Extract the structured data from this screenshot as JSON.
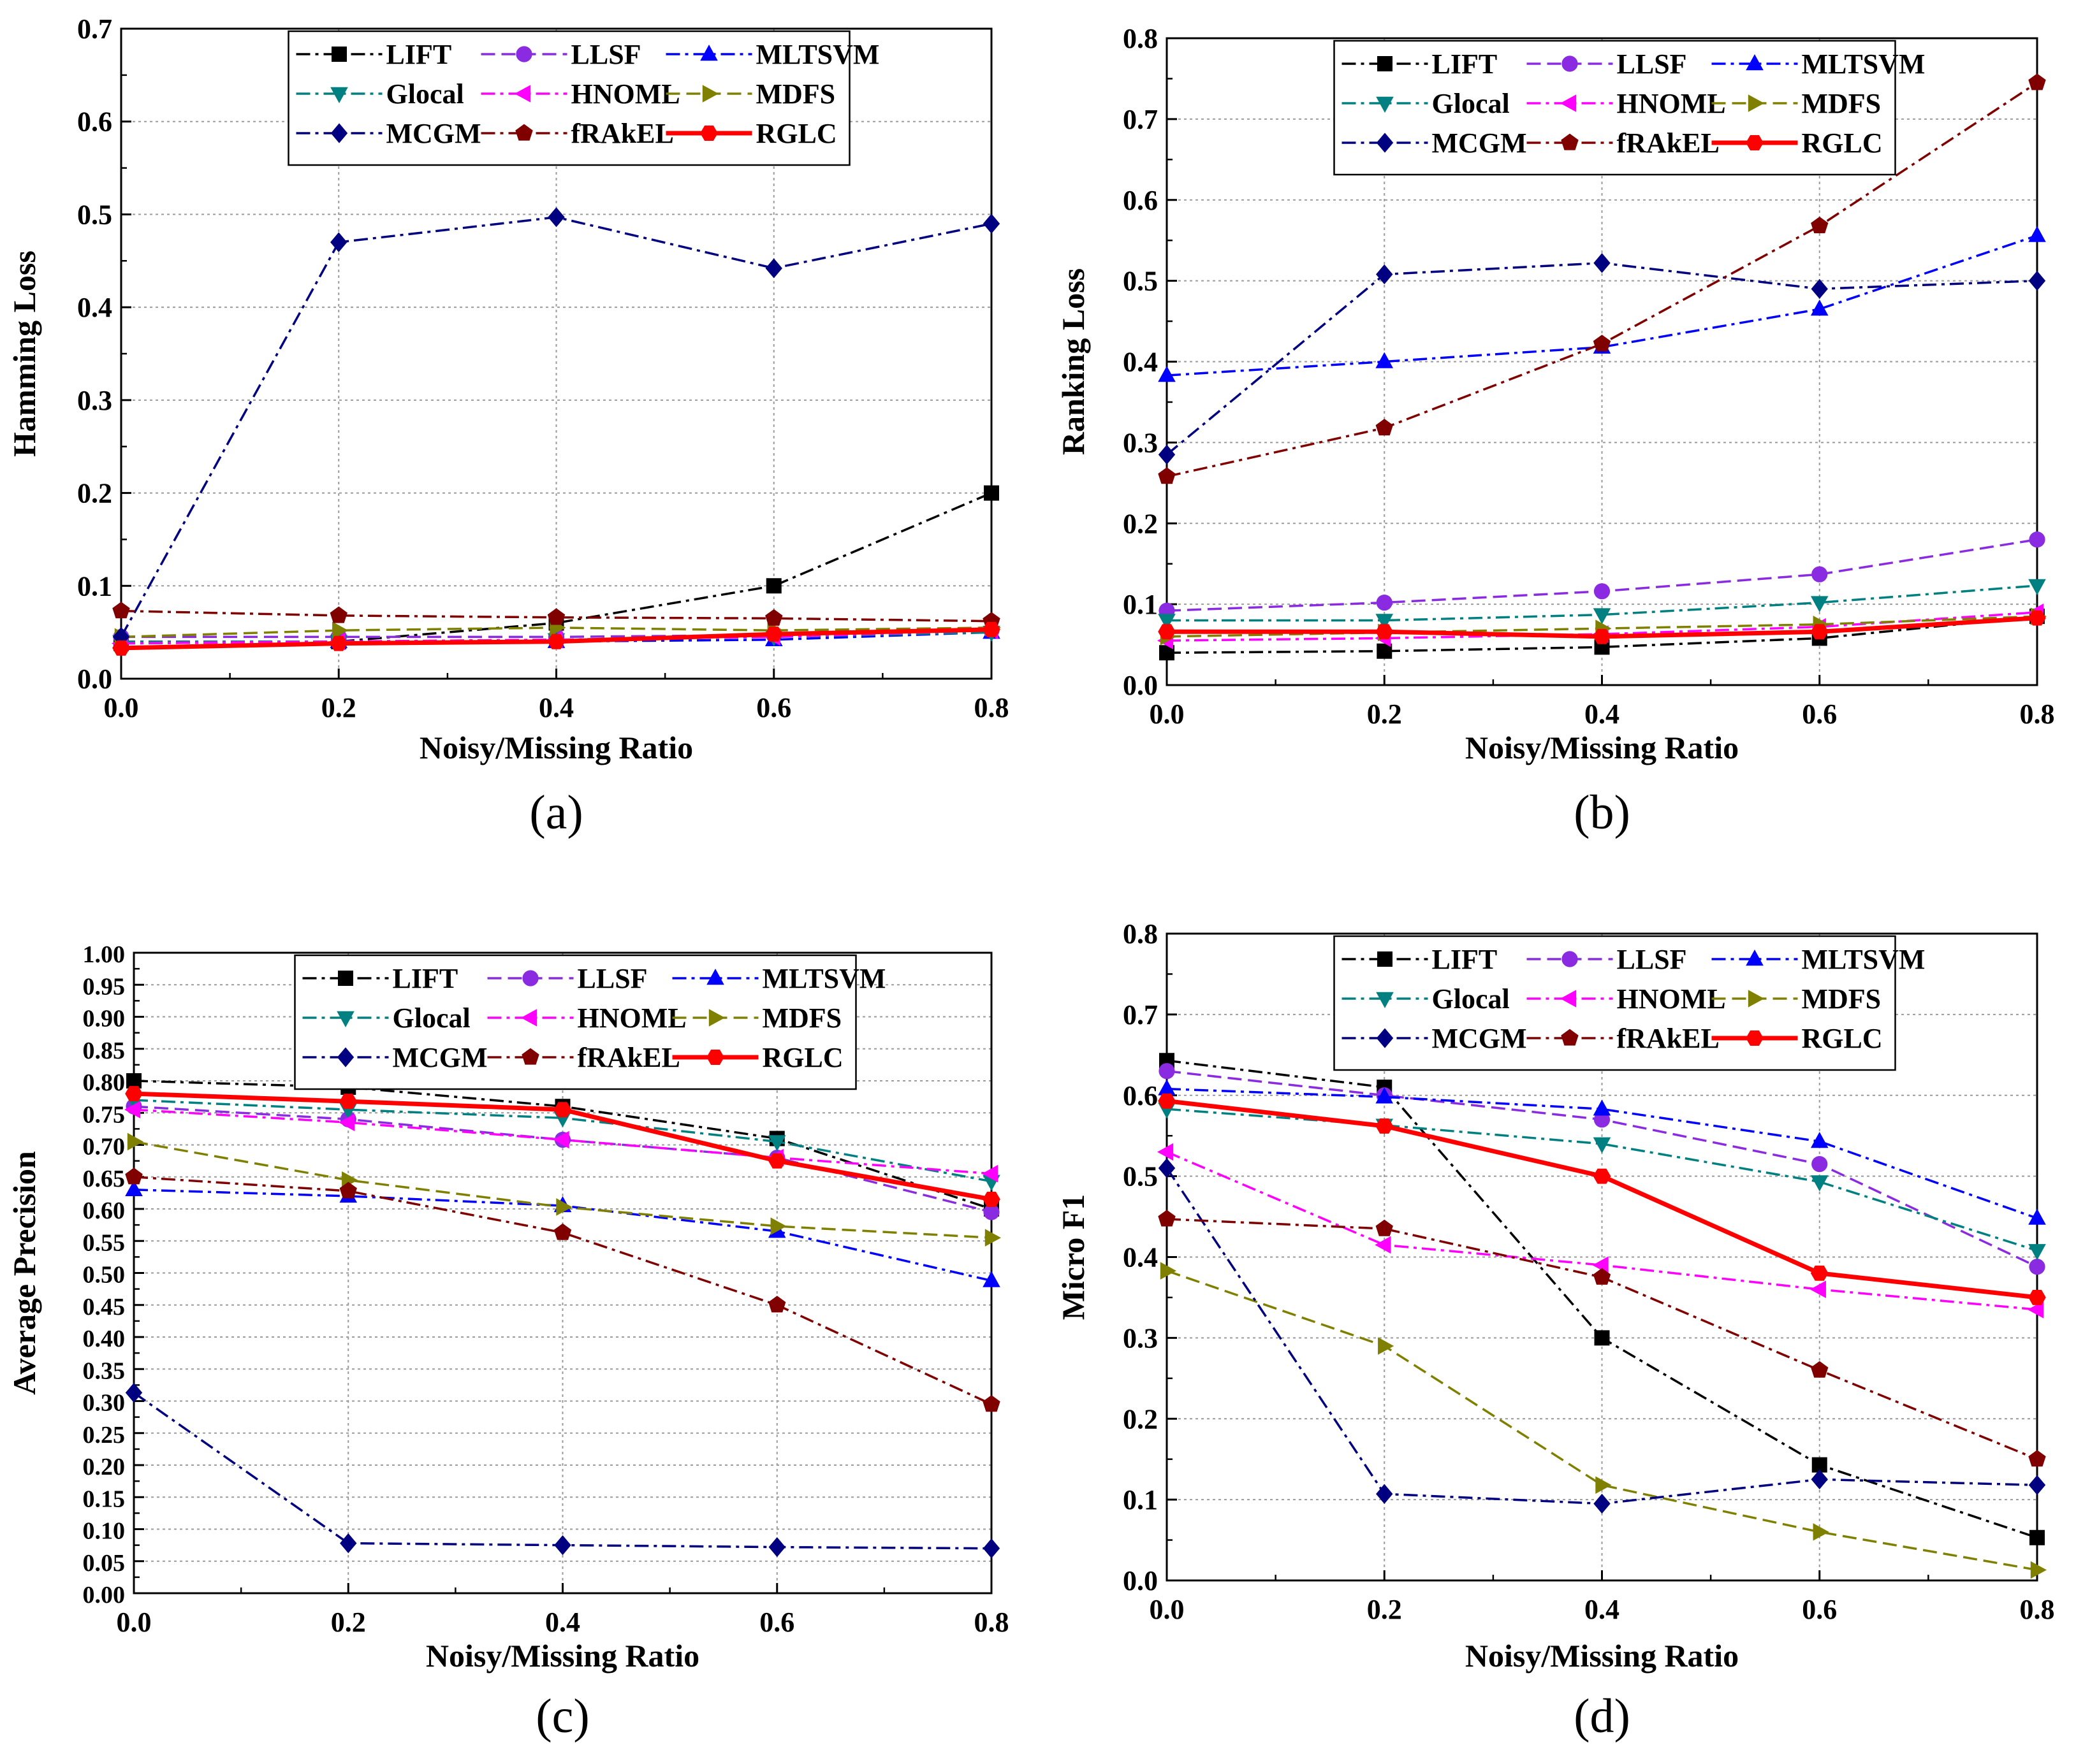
{
  "figure": {
    "series_styles": [
      {
        "name": "LIFT",
        "color": "#000000",
        "marker": "square",
        "dash": "dashdot"
      },
      {
        "name": "LLSF",
        "color": "#8a2be2",
        "marker": "circle",
        "dash": "dash"
      },
      {
        "name": "MLTSVM",
        "color": "#0000ff",
        "marker": "triangle-up",
        "dash": "dashdot"
      },
      {
        "name": "Glocal",
        "color": "#008080",
        "marker": "triangle-down",
        "dash": "dashdot"
      },
      {
        "name": "HNOML",
        "color": "#ff00ff",
        "marker": "triangle-left",
        "dash": "dashdot"
      },
      {
        "name": "MDFS",
        "color": "#808000",
        "marker": "triangle-right",
        "dash": "dash"
      },
      {
        "name": "MCGM",
        "color": "#000080",
        "marker": "diamond",
        "dash": "dashdot"
      },
      {
        "name": "fRAkEL",
        "color": "#800000",
        "marker": "pentagon",
        "dash": "dashdot"
      },
      {
        "name": "RGLC",
        "color": "#ff0000",
        "marker": "hexagon",
        "dash": "solid"
      }
    ]
  },
  "chart_data": [
    {
      "panel": "(a)",
      "type": "line",
      "xlabel": "Noisy/Missing Ratio",
      "ylabel": "Hamming Loss",
      "x": [
        0.0,
        0.2,
        0.4,
        0.6,
        0.8
      ],
      "xticks": [
        "0.0",
        "0.2",
        "0.4",
        "0.6",
        "0.8"
      ],
      "xlim": [
        0,
        0.8
      ],
      "ylim": [
        0,
        0.7
      ],
      "yticks": [
        "0.0",
        "0.1",
        "0.2",
        "0.3",
        "0.4",
        "0.5",
        "0.6",
        "0.7"
      ],
      "grid": true,
      "legend": "top",
      "series": [
        {
          "name": "LIFT",
          "values": [
            0.038,
            0.04,
            0.06,
            0.1,
            0.2
          ]
        },
        {
          "name": "LLSF",
          "values": [
            0.045,
            0.045,
            0.045,
            0.047,
            0.052
          ]
        },
        {
          "name": "MLTSVM",
          "values": [
            0.04,
            0.04,
            0.04,
            0.042,
            0.05
          ]
        },
        {
          "name": "Glocal",
          "values": [
            0.04,
            0.04,
            0.042,
            0.045,
            0.05
          ]
        },
        {
          "name": "HNOML",
          "values": [
            0.038,
            0.04,
            0.042,
            0.045,
            0.052
          ]
        },
        {
          "name": "MDFS",
          "values": [
            0.045,
            0.052,
            0.055,
            0.052,
            0.055
          ]
        },
        {
          "name": "MCGM",
          "values": [
            0.045,
            0.47,
            0.497,
            0.442,
            0.49
          ]
        },
        {
          "name": "fRAkEL",
          "values": [
            0.073,
            0.068,
            0.066,
            0.065,
            0.062
          ]
        },
        {
          "name": "RGLC",
          "values": [
            0.033,
            0.038,
            0.04,
            0.048,
            0.053
          ]
        }
      ]
    },
    {
      "panel": "(b)",
      "type": "line",
      "xlabel": "Noisy/Missing Ratio",
      "ylabel": "Ranking Loss",
      "x": [
        0.0,
        0.2,
        0.4,
        0.6,
        0.8
      ],
      "xticks": [
        "0.0",
        "0.2",
        "0.4",
        "0.6",
        "0.8"
      ],
      "xlim": [
        0,
        0.8
      ],
      "ylim": [
        0,
        0.8
      ],
      "yticks": [
        "0.0",
        "0.1",
        "0.2",
        "0.3",
        "0.4",
        "0.5",
        "0.6",
        "0.7",
        "0.8"
      ],
      "grid": true,
      "legend": "top",
      "series": [
        {
          "name": "LIFT",
          "values": [
            0.04,
            0.042,
            0.047,
            0.058,
            0.085
          ]
        },
        {
          "name": "LLSF",
          "values": [
            0.092,
            0.102,
            0.116,
            0.137,
            0.18
          ]
        },
        {
          "name": "MLTSVM",
          "values": [
            0.383,
            0.4,
            0.418,
            0.465,
            0.556
          ]
        },
        {
          "name": "Glocal",
          "values": [
            0.08,
            0.08,
            0.087,
            0.102,
            0.123
          ]
        },
        {
          "name": "HNOML",
          "values": [
            0.055,
            0.058,
            0.063,
            0.072,
            0.09
          ]
        },
        {
          "name": "MDFS",
          "values": [
            0.06,
            0.065,
            0.07,
            0.075,
            0.085
          ]
        },
        {
          "name": "MCGM",
          "values": [
            0.285,
            0.508,
            0.522,
            0.49,
            0.5
          ]
        },
        {
          "name": "fRAkEL",
          "values": [
            0.258,
            0.318,
            0.422,
            0.568,
            0.745
          ]
        },
        {
          "name": "RGLC",
          "values": [
            0.066,
            0.066,
            0.06,
            0.066,
            0.083
          ]
        }
      ]
    },
    {
      "panel": "(c)",
      "type": "line",
      "xlabel": "Noisy/Missing Ratio",
      "ylabel": "Average Precision",
      "x": [
        0.0,
        0.2,
        0.4,
        0.6,
        0.8
      ],
      "xticks": [
        "0.0",
        "0.2",
        "0.4",
        "0.6",
        "0.8"
      ],
      "xlim": [
        0,
        0.8
      ],
      "ylim": [
        0,
        1.0
      ],
      "yticks": [
        "0.00",
        "0.05",
        "0.10",
        "0.15",
        "0.20",
        "0.25",
        "0.30",
        "0.35",
        "0.40",
        "0.45",
        "0.50",
        "0.55",
        "0.60",
        "0.65",
        "0.70",
        "0.75",
        "0.80",
        "0.85",
        "0.90",
        "0.95",
        "1.00"
      ],
      "grid": true,
      "legend": "top",
      "series": [
        {
          "name": "LIFT",
          "values": [
            0.8,
            0.79,
            0.76,
            0.71,
            0.6
          ]
        },
        {
          "name": "LLSF",
          "values": [
            0.76,
            0.74,
            0.708,
            0.68,
            0.595
          ]
        },
        {
          "name": "MLTSVM",
          "values": [
            0.63,
            0.62,
            0.605,
            0.565,
            0.488
          ]
        },
        {
          "name": "Glocal",
          "values": [
            0.77,
            0.755,
            0.742,
            0.705,
            0.643
          ]
        },
        {
          "name": "HNOML",
          "values": [
            0.755,
            0.735,
            0.708,
            0.68,
            0.655
          ]
        },
        {
          "name": "MDFS",
          "values": [
            0.705,
            0.645,
            0.603,
            0.573,
            0.555
          ]
        },
        {
          "name": "MCGM",
          "values": [
            0.313,
            0.078,
            0.075,
            0.072,
            0.07
          ]
        },
        {
          "name": "fRAkEL",
          "values": [
            0.65,
            0.628,
            0.563,
            0.45,
            0.295
          ]
        },
        {
          "name": "RGLC",
          "values": [
            0.78,
            0.768,
            0.755,
            0.675,
            0.615
          ]
        }
      ]
    },
    {
      "panel": "(d)",
      "type": "line",
      "xlabel": "Noisy/Missing Ratio",
      "ylabel": "Micro F1",
      "x": [
        0.0,
        0.2,
        0.4,
        0.6,
        0.8
      ],
      "xticks": [
        "0.0",
        "0.2",
        "0.4",
        "0.6",
        "0.8"
      ],
      "xlim": [
        0,
        0.8
      ],
      "ylim": [
        0,
        0.8
      ],
      "yticks": [
        "0.0",
        "0.1",
        "0.2",
        "0.3",
        "0.4",
        "0.5",
        "0.6",
        "0.7",
        "0.8"
      ],
      "grid": true,
      "legend": "top",
      "series": [
        {
          "name": "LIFT",
          "values": [
            0.643,
            0.61,
            0.3,
            0.143,
            0.053
          ]
        },
        {
          "name": "LLSF",
          "values": [
            0.63,
            0.6,
            0.57,
            0.515,
            0.388
          ]
        },
        {
          "name": "MLTSVM",
          "values": [
            0.608,
            0.598,
            0.583,
            0.543,
            0.448
          ]
        },
        {
          "name": "Glocal",
          "values": [
            0.583,
            0.563,
            0.54,
            0.493,
            0.408
          ]
        },
        {
          "name": "HNOML",
          "values": [
            0.53,
            0.415,
            0.39,
            0.36,
            0.335
          ]
        },
        {
          "name": "MDFS",
          "values": [
            0.383,
            0.29,
            0.118,
            0.06,
            0.013
          ]
        },
        {
          "name": "MCGM",
          "values": [
            0.51,
            0.107,
            0.095,
            0.125,
            0.118
          ]
        },
        {
          "name": "fRAkEL",
          "values": [
            0.447,
            0.435,
            0.375,
            0.26,
            0.15
          ]
        },
        {
          "name": "RGLC",
          "values": [
            0.593,
            0.562,
            0.5,
            0.38,
            0.35
          ]
        }
      ]
    }
  ]
}
